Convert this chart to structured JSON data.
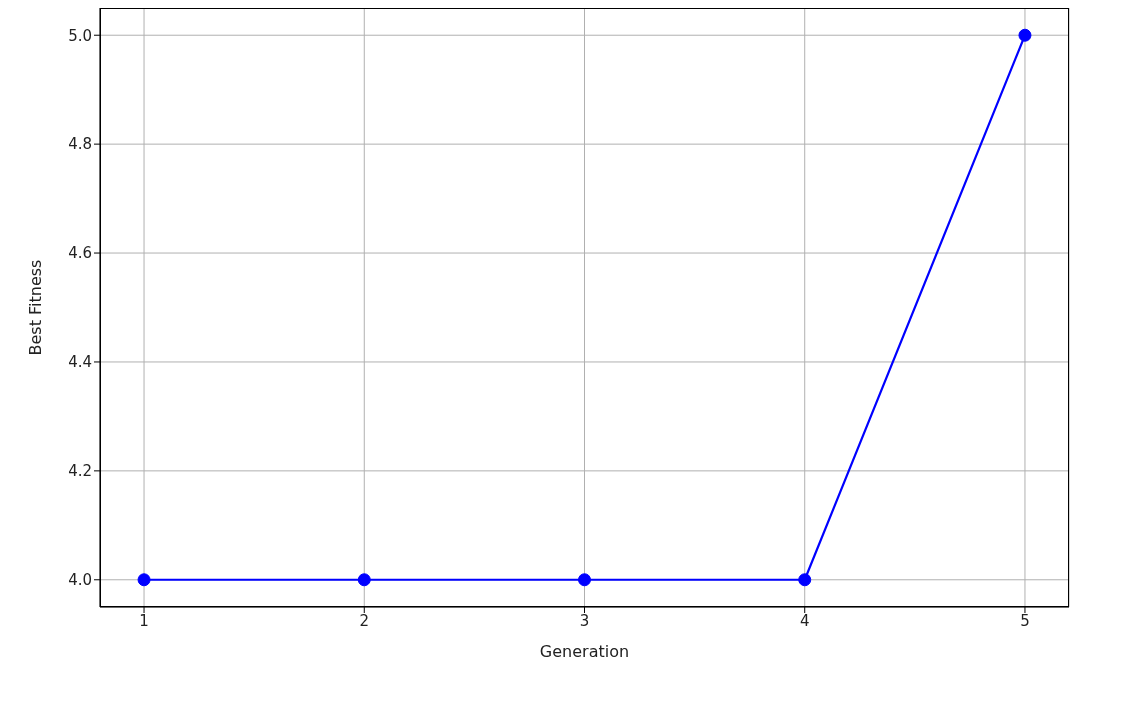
{
  "chart_data": {
    "type": "line",
    "xlabel": "Generation",
    "ylabel": "Best Fitness",
    "x": [
      1,
      2,
      3,
      4,
      5
    ],
    "series": [
      {
        "color": "#0000ff",
        "values": [
          4.0,
          4.0,
          4.0,
          4.0,
          5.0
        ]
      }
    ],
    "xlim": [
      0.8,
      5.2
    ],
    "xticks": [
      1,
      2,
      3,
      4,
      5
    ],
    "ylim": [
      3.95,
      5.05
    ],
    "yticks": [
      {
        "value": 4.0,
        "label": "4.0"
      },
      {
        "value": 4.2,
        "label": "4.2"
      },
      {
        "value": 4.4,
        "label": "4.4"
      },
      {
        "value": 4.6,
        "label": "4.6"
      },
      {
        "value": 4.8,
        "label": "4.8"
      },
      {
        "value": 5.0,
        "label": "5.0"
      }
    ],
    "grid": true,
    "marker": "circle",
    "line_style": "solid"
  }
}
